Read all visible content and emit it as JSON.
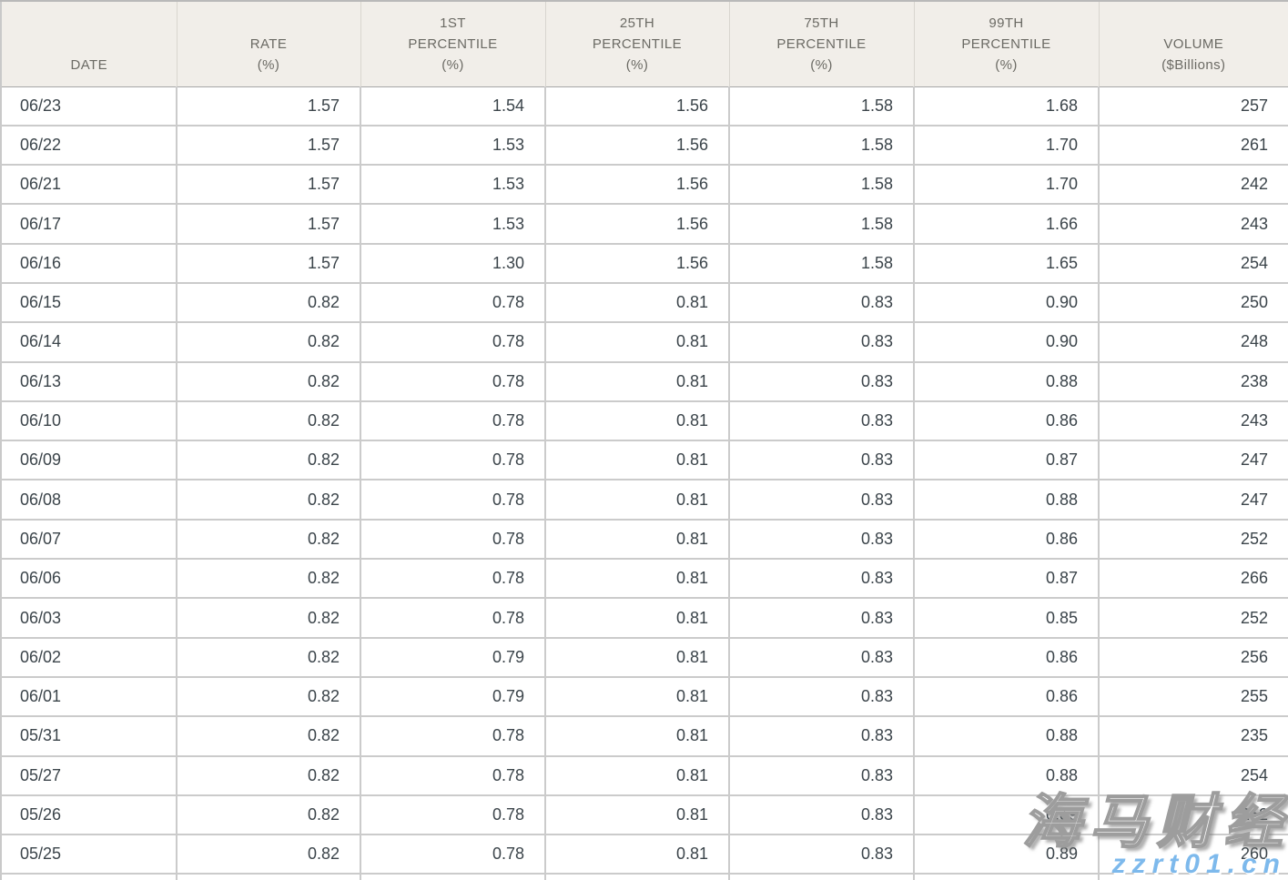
{
  "table": {
    "columns": [
      {
        "key": "date",
        "lines": [
          "DATE"
        ]
      },
      {
        "key": "rate",
        "lines": [
          "RATE",
          "(%)"
        ]
      },
      {
        "key": "p01",
        "lines": [
          "1ST",
          "PERCENTILE",
          "(%)"
        ]
      },
      {
        "key": "p25",
        "lines": [
          "25TH",
          "PERCENTILE",
          "(%)"
        ]
      },
      {
        "key": "p75",
        "lines": [
          "75TH",
          "PERCENTILE",
          "(%)"
        ]
      },
      {
        "key": "p99",
        "lines": [
          "99TH",
          "PERCENTILE",
          "(%)"
        ]
      },
      {
        "key": "volume",
        "lines": [
          "VOLUME",
          "($Billions)"
        ]
      }
    ],
    "rows": [
      {
        "date": "06/23",
        "rate": "1.57",
        "p01": "1.54",
        "p25": "1.56",
        "p75": "1.58",
        "p99": "1.68",
        "volume": "257"
      },
      {
        "date": "06/22",
        "rate": "1.57",
        "p01": "1.53",
        "p25": "1.56",
        "p75": "1.58",
        "p99": "1.70",
        "volume": "261"
      },
      {
        "date": "06/21",
        "rate": "1.57",
        "p01": "1.53",
        "p25": "1.56",
        "p75": "1.58",
        "p99": "1.70",
        "volume": "242"
      },
      {
        "date": "06/17",
        "rate": "1.57",
        "p01": "1.53",
        "p25": "1.56",
        "p75": "1.58",
        "p99": "1.66",
        "volume": "243"
      },
      {
        "date": "06/16",
        "rate": "1.57",
        "p01": "1.30",
        "p25": "1.56",
        "p75": "1.58",
        "p99": "1.65",
        "volume": "254"
      },
      {
        "date": "06/15",
        "rate": "0.82",
        "p01": "0.78",
        "p25": "0.81",
        "p75": "0.83",
        "p99": "0.90",
        "volume": "250"
      },
      {
        "date": "06/14",
        "rate": "0.82",
        "p01": "0.78",
        "p25": "0.81",
        "p75": "0.83",
        "p99": "0.90",
        "volume": "248"
      },
      {
        "date": "06/13",
        "rate": "0.82",
        "p01": "0.78",
        "p25": "0.81",
        "p75": "0.83",
        "p99": "0.88",
        "volume": "238"
      },
      {
        "date": "06/10",
        "rate": "0.82",
        "p01": "0.78",
        "p25": "0.81",
        "p75": "0.83",
        "p99": "0.86",
        "volume": "243"
      },
      {
        "date": "06/09",
        "rate": "0.82",
        "p01": "0.78",
        "p25": "0.81",
        "p75": "0.83",
        "p99": "0.87",
        "volume": "247"
      },
      {
        "date": "06/08",
        "rate": "0.82",
        "p01": "0.78",
        "p25": "0.81",
        "p75": "0.83",
        "p99": "0.88",
        "volume": "247"
      },
      {
        "date": "06/07",
        "rate": "0.82",
        "p01": "0.78",
        "p25": "0.81",
        "p75": "0.83",
        "p99": "0.86",
        "volume": "252"
      },
      {
        "date": "06/06",
        "rate": "0.82",
        "p01": "0.78",
        "p25": "0.81",
        "p75": "0.83",
        "p99": "0.87",
        "volume": "266"
      },
      {
        "date": "06/03",
        "rate": "0.82",
        "p01": "0.78",
        "p25": "0.81",
        "p75": "0.83",
        "p99": "0.85",
        "volume": "252"
      },
      {
        "date": "06/02",
        "rate": "0.82",
        "p01": "0.79",
        "p25": "0.81",
        "p75": "0.83",
        "p99": "0.86",
        "volume": "256"
      },
      {
        "date": "06/01",
        "rate": "0.82",
        "p01": "0.79",
        "p25": "0.81",
        "p75": "0.83",
        "p99": "0.86",
        "volume": "255"
      },
      {
        "date": "05/31",
        "rate": "0.82",
        "p01": "0.78",
        "p25": "0.81",
        "p75": "0.83",
        "p99": "0.88",
        "volume": "235"
      },
      {
        "date": "05/27",
        "rate": "0.82",
        "p01": "0.78",
        "p25": "0.81",
        "p75": "0.83",
        "p99": "0.88",
        "volume": "254"
      },
      {
        "date": "05/26",
        "rate": "0.82",
        "p01": "0.78",
        "p25": "0.81",
        "p75": "0.83",
        "p99": "0.89",
        "volume": "252"
      },
      {
        "date": "05/25",
        "rate": "0.82",
        "p01": "0.78",
        "p25": "0.81",
        "p75": "0.83",
        "p99": "0.89",
        "volume": "260"
      }
    ]
  },
  "watermark": {
    "brand": "海马财经",
    "url": "zzrt01.cn",
    "brand_color": "#ffffff",
    "brand_outline_color": "#9d9d9d",
    "url_color": "#7db9ec"
  },
  "colors": {
    "header_background": "#f1eee9",
    "header_text": "#6b6a64",
    "body_text": "#3b444a",
    "row_border": "#cbcbcb",
    "outer_border": "#b9b9b9"
  },
  "chart_data": {
    "type": "table",
    "title": "",
    "columns": [
      "DATE",
      "RATE (%)",
      "1ST PERCENTILE (%)",
      "25TH PERCENTILE (%)",
      "75TH PERCENTILE (%)",
      "99TH PERCENTILE (%)",
      "VOLUME ($Billions)"
    ],
    "rows": [
      [
        "06/23",
        1.57,
        1.54,
        1.56,
        1.58,
        1.68,
        257
      ],
      [
        "06/22",
        1.57,
        1.53,
        1.56,
        1.58,
        1.7,
        261
      ],
      [
        "06/21",
        1.57,
        1.53,
        1.56,
        1.58,
        1.7,
        242
      ],
      [
        "06/17",
        1.57,
        1.53,
        1.56,
        1.58,
        1.66,
        243
      ],
      [
        "06/16",
        1.57,
        1.3,
        1.56,
        1.58,
        1.65,
        254
      ],
      [
        "06/15",
        0.82,
        0.78,
        0.81,
        0.83,
        0.9,
        250
      ],
      [
        "06/14",
        0.82,
        0.78,
        0.81,
        0.83,
        0.9,
        248
      ],
      [
        "06/13",
        0.82,
        0.78,
        0.81,
        0.83,
        0.88,
        238
      ],
      [
        "06/10",
        0.82,
        0.78,
        0.81,
        0.83,
        0.86,
        243
      ],
      [
        "06/09",
        0.82,
        0.78,
        0.81,
        0.83,
        0.87,
        247
      ],
      [
        "06/08",
        0.82,
        0.78,
        0.81,
        0.83,
        0.88,
        247
      ],
      [
        "06/07",
        0.82,
        0.78,
        0.81,
        0.83,
        0.86,
        252
      ],
      [
        "06/06",
        0.82,
        0.78,
        0.81,
        0.83,
        0.87,
        266
      ],
      [
        "06/03",
        0.82,
        0.78,
        0.81,
        0.83,
        0.85,
        252
      ],
      [
        "06/02",
        0.82,
        0.79,
        0.81,
        0.83,
        0.86,
        256
      ],
      [
        "06/01",
        0.82,
        0.79,
        0.81,
        0.83,
        0.86,
        255
      ],
      [
        "05/31",
        0.82,
        0.78,
        0.81,
        0.83,
        0.88,
        235
      ],
      [
        "05/27",
        0.82,
        0.78,
        0.81,
        0.83,
        0.88,
        254
      ],
      [
        "05/26",
        0.82,
        0.78,
        0.81,
        0.83,
        0.89,
        252
      ],
      [
        "05/25",
        0.82,
        0.78,
        0.81,
        0.83,
        0.89,
        260
      ]
    ]
  }
}
